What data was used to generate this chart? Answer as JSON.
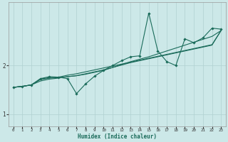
{
  "xlabel": "Humidex (Indice chaleur)",
  "background_color": "#cce8e8",
  "grid_color": "#b0d0d0",
  "line_color": "#1a6b5a",
  "xlim": [
    -0.5,
    23.5
  ],
  "ylim": [
    0.75,
    3.3
  ],
  "yticks": [
    1.0,
    2.0
  ],
  "xticks": [
    0,
    1,
    2,
    3,
    4,
    5,
    6,
    7,
    8,
    9,
    10,
    11,
    12,
    13,
    14,
    15,
    16,
    17,
    18,
    19,
    20,
    21,
    22,
    23
  ],
  "line1_x": [
    0,
    1,
    2,
    3,
    4,
    5,
    6,
    7,
    8,
    9,
    10,
    11,
    12,
    13,
    14,
    15,
    16,
    17,
    18,
    19,
    20,
    21,
    22,
    23
  ],
  "line1_y": [
    1.55,
    1.57,
    1.6,
    1.73,
    1.77,
    1.76,
    1.73,
    1.42,
    1.62,
    1.78,
    1.9,
    2.0,
    2.1,
    2.18,
    2.2,
    3.08,
    2.3,
    2.08,
    2.0,
    2.55,
    2.47,
    2.57,
    2.77,
    2.75
  ],
  "line2_x": [
    0,
    1,
    2,
    3,
    4,
    5,
    6,
    7,
    8,
    9,
    10,
    11,
    12,
    13,
    14,
    15,
    16,
    17,
    18,
    19,
    20,
    21,
    22,
    23
  ],
  "line2_y": [
    1.55,
    1.57,
    1.6,
    1.72,
    1.75,
    1.76,
    1.8,
    1.83,
    1.87,
    1.91,
    1.95,
    1.99,
    2.03,
    2.07,
    2.11,
    2.15,
    2.19,
    2.23,
    2.27,
    2.31,
    2.35,
    2.39,
    2.43,
    2.72
  ],
  "line3_x": [
    0,
    1,
    2,
    3,
    4,
    5,
    6,
    7,
    8,
    9,
    10,
    11,
    12,
    13,
    14,
    15,
    16,
    17,
    18,
    19,
    20,
    21,
    22,
    23
  ],
  "line3_y": [
    1.55,
    1.57,
    1.6,
    1.71,
    1.74,
    1.75,
    1.77,
    1.79,
    1.82,
    1.86,
    1.9,
    1.96,
    2.02,
    2.08,
    2.13,
    2.18,
    2.24,
    2.3,
    2.36,
    2.42,
    2.48,
    2.54,
    2.6,
    2.72
  ],
  "line4_x": [
    0,
    1,
    2,
    3,
    4,
    5,
    6,
    7,
    8,
    9,
    10,
    11,
    12,
    13,
    14,
    15,
    16,
    17,
    18,
    19,
    20,
    21,
    22,
    23
  ],
  "line4_y": [
    1.55,
    1.57,
    1.6,
    1.68,
    1.72,
    1.74,
    1.77,
    1.79,
    1.83,
    1.87,
    1.91,
    1.96,
    2.01,
    2.06,
    2.1,
    2.14,
    2.18,
    2.22,
    2.26,
    2.3,
    2.34,
    2.38,
    2.42,
    2.72
  ]
}
